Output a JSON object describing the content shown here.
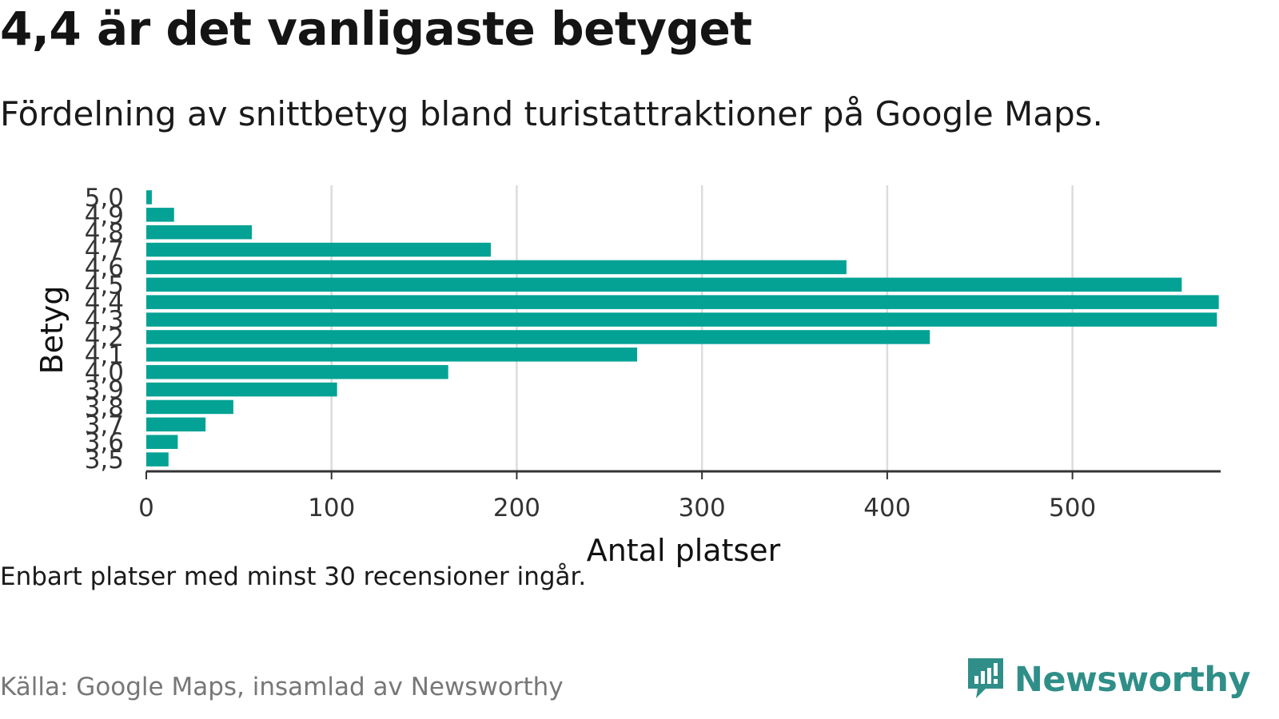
{
  "title": "4,4 är det vanligaste betyget",
  "subtitle": "Fördelning av snittbetyg bland turistattraktioner på Google Maps.",
  "note": "Enbart platser med minst 30 recensioner ingår.",
  "source": "Källa: Google Maps, insamlad av Newsworthy",
  "brand": {
    "name": "Newsworthy",
    "logo_icon": "newsworthy-logo-icon"
  },
  "colors": {
    "bar": "#04a294",
    "grid": "#dcdcdc",
    "axis": "#333333",
    "brand": "#2f8f88"
  },
  "chart_data": {
    "type": "bar",
    "orientation": "horizontal",
    "categories": [
      "5,0",
      "4,9",
      "4,8",
      "4,7",
      "4,6",
      "4,5",
      "4,4",
      "4,3",
      "4,2",
      "4,1",
      "4,0",
      "3,9",
      "3,8",
      "3,7",
      "3,6",
      "3,5"
    ],
    "values": [
      3,
      15,
      57,
      186,
      378,
      559,
      579,
      578,
      423,
      265,
      163,
      103,
      47,
      32,
      17,
      12
    ],
    "xlabel": "Antal platser",
    "ylabel": "Betyg",
    "xlim": [
      0,
      580
    ],
    "xticks": [
      0,
      100,
      200,
      300,
      400,
      500
    ],
    "xtick_labels": [
      "0",
      "100",
      "200",
      "300",
      "400",
      "500"
    ],
    "grid": "vertical",
    "legend": "none"
  }
}
